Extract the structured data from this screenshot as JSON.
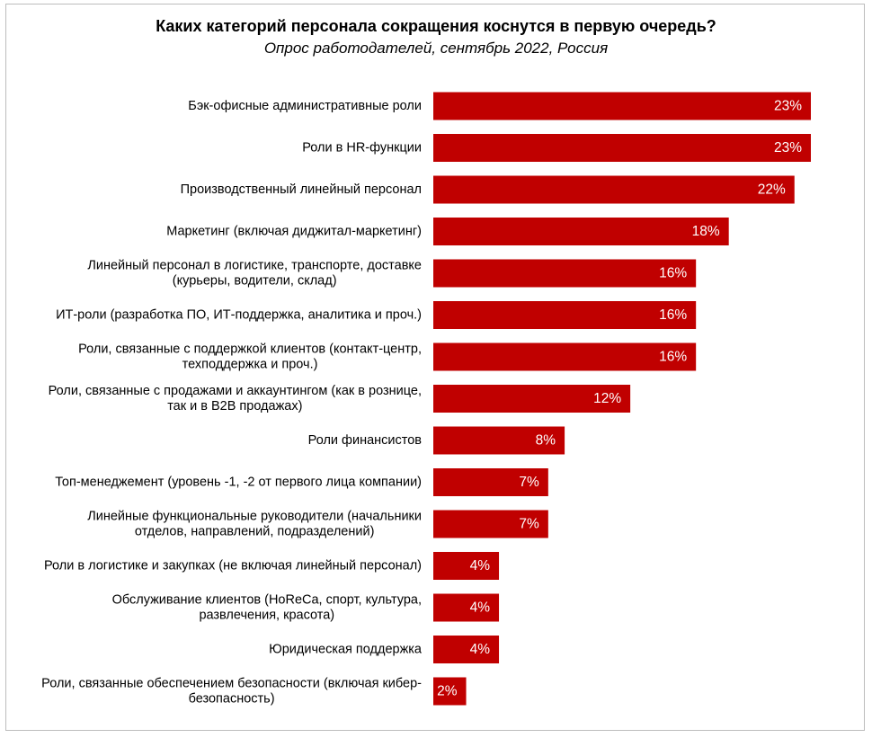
{
  "chart_data": {
    "type": "bar",
    "orientation": "horizontal",
    "title": "Каких категорий персонала сокращения коснутся в первую очередь?",
    "subtitle": "Опрос работодателей, сентябрь 2022, Россия",
    "bar_color": "#c00000",
    "value_suffix": "%",
    "xlim": [
      0,
      23
    ],
    "grid": false,
    "legend": "none",
    "categories": [
      [
        "Бэк-офисные административные роли"
      ],
      [
        "Роли в HR-функции"
      ],
      [
        "Производственный линейный персонал"
      ],
      [
        "Маркетинг (включая диджитал-маркетинг)"
      ],
      [
        "Линейный персонал в логистике, транспорте, доставке",
        "(курьеры, водители, склад)"
      ],
      [
        "ИТ-роли (разработка ПО, ИТ-поддержка, аналитика и проч.)"
      ],
      [
        "Роли, связанные с поддержкой клиентов (контакт-центр,",
        "техподдержка и проч.)"
      ],
      [
        "Роли, связанные с продажами и аккаунтингом (как в рознице,",
        "так и в B2B продажах)"
      ],
      [
        "Роли финансистов"
      ],
      [
        "Топ-менеджемент (уровень -1, -2 от первого лица компании)"
      ],
      [
        "Линейные функциональные руководители (начальники",
        "отделов, направлений, подразделений)"
      ],
      [
        "Роли в логистике и закупках (не включая линейный персонал)"
      ],
      [
        "Обслуживание клиентов (HoReCa, спорт, культура,",
        "развлечения, красота)"
      ],
      [
        "Юридическая поддержка"
      ],
      [
        "Роли, связанные обеспечением безопасности (включая кибер-",
        "безопасность)"
      ]
    ],
    "values": [
      23,
      23,
      22,
      18,
      16,
      16,
      16,
      12,
      8,
      7,
      7,
      4,
      4,
      4,
      2
    ]
  }
}
